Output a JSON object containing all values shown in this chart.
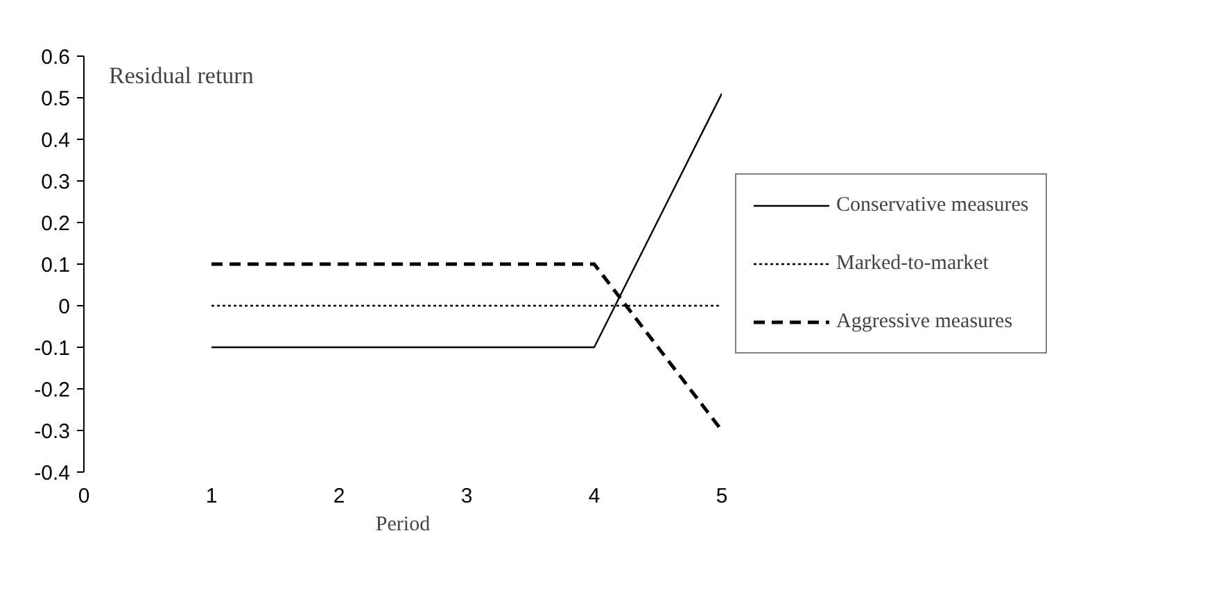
{
  "chart_data": {
    "type": "line",
    "ylabel": "Residual return",
    "xlabel": "Period",
    "xlim": [
      0,
      5
    ],
    "xticks": [
      0,
      1,
      2,
      3,
      4,
      5
    ],
    "ylim": [
      -0.4,
      0.6
    ],
    "yticks": [
      -0.4,
      -0.3,
      -0.2,
      -0.1,
      0,
      0.1,
      0.2,
      0.3,
      0.4,
      0.5,
      0.6
    ],
    "grid": false,
    "legend": "right",
    "marker": "none",
    "series": [
      {
        "name": "Conservative measures",
        "color": "#000000",
        "line_style": "solid",
        "x": [
          1,
          2,
          3,
          4,
          5
        ],
        "values": [
          -0.1,
          -0.1,
          -0.1,
          -0.1,
          0.51
        ]
      },
      {
        "name": "Marked-to-market",
        "color": "#000000",
        "line_style": "dotted",
        "x": [
          1,
          2,
          3,
          4,
          5
        ],
        "values": [
          0,
          0,
          0,
          0,
          0
        ]
      },
      {
        "name": "Aggressive measures",
        "color": "#000000",
        "line_style": "dashed",
        "x": [
          1,
          2,
          3,
          4,
          5
        ],
        "values": [
          0.1,
          0.1,
          0.1,
          0.1,
          -0.3
        ]
      }
    ]
  }
}
